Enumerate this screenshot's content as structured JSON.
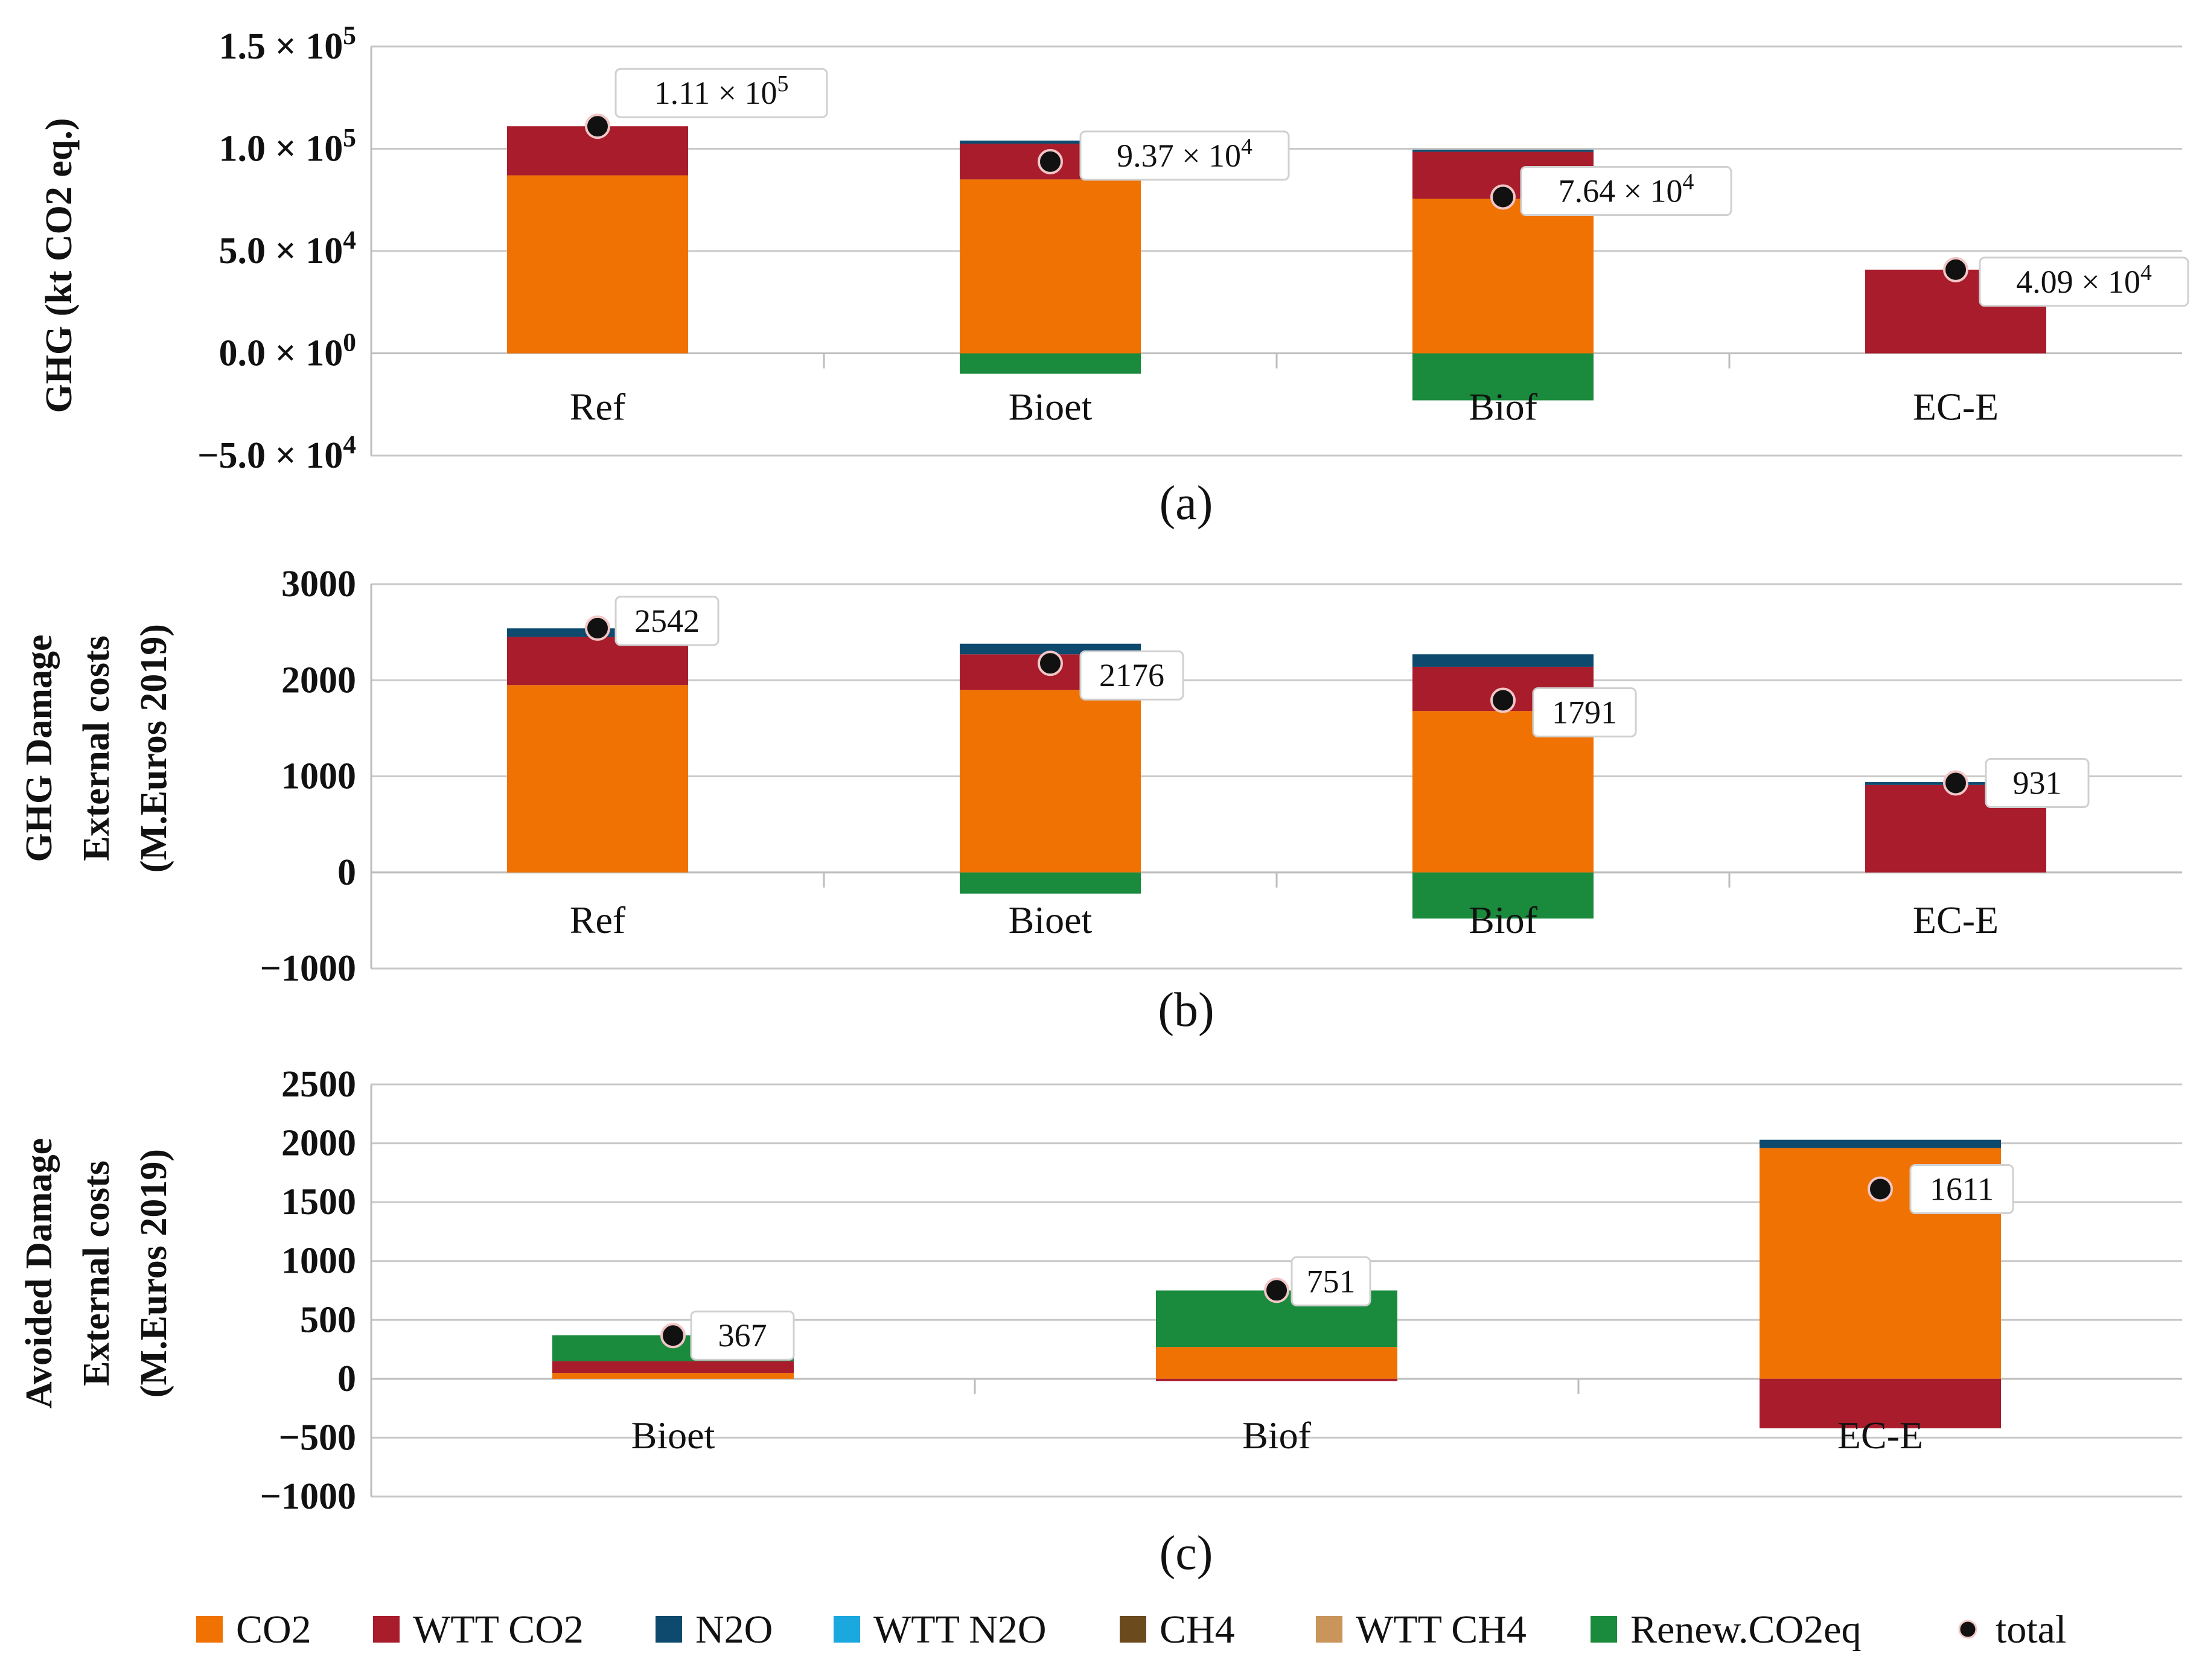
{
  "legend": [
    {
      "key": "CO2",
      "label": "CO2",
      "color": "#ef7202"
    },
    {
      "key": "WTT_CO2",
      "label": "WTT CO2",
      "color": "#a81c2c"
    },
    {
      "key": "N2O",
      "label": "N2O",
      "color": "#0e4a6e"
    },
    {
      "key": "WTT_N2O",
      "label": "WTT N2O",
      "color": "#1aa8df"
    },
    {
      "key": "CH4",
      "label": "CH4",
      "color": "#6b4a1e"
    },
    {
      "key": "WTT_CH4",
      "label": "WTT CH4",
      "color": "#c9955b"
    },
    {
      "key": "Renew_CO2eq",
      "label": "Renew.CO2eq",
      "color": "#1a8a3c"
    },
    {
      "key": "total",
      "label": "total",
      "color": "#111111"
    }
  ],
  "chart_data": [
    {
      "panel": "(a)",
      "type": "bar",
      "stacked": true,
      "ylabel": "GHG (kt CO2 eq.)",
      "ylim": [
        -50000,
        150000
      ],
      "ytick_values": [
        150000,
        100000,
        50000,
        0,
        -50000
      ],
      "ytick_labels": [
        {
          "mant": "1.5",
          "exp": "5"
        },
        {
          "mant": "1.0",
          "exp": "5"
        },
        {
          "mant": "5.0",
          "exp": "4"
        },
        {
          "mant": "0.0",
          "exp": "0"
        },
        {
          "mant": "−5.0",
          "exp": "4"
        }
      ],
      "categories": [
        "Ref",
        "Bioet",
        "Biof",
        "EC-E"
      ],
      "series": [
        {
          "name": "CO2",
          "values": [
            87000,
            85000,
            75500,
            0
          ]
        },
        {
          "name": "WTT CO2",
          "values": [
            24000,
            17500,
            23000,
            40900
          ]
        },
        {
          "name": "N2O",
          "values": [
            0,
            1500,
            1000,
            0
          ]
        },
        {
          "name": "Renew.CO2eq",
          "values": [
            0,
            -10000,
            -23000,
            0
          ]
        }
      ],
      "totals": [
        111000,
        93700,
        76400,
        40900
      ],
      "total_labels": [
        {
          "mant": "1.11",
          "exp": "5"
        },
        {
          "mant": "9.37",
          "exp": "4"
        },
        {
          "mant": "7.64",
          "exp": "4"
        },
        {
          "mant": "4.09",
          "exp": "4"
        }
      ]
    },
    {
      "panel": "(b)",
      "type": "bar",
      "stacked": true,
      "ylabel": [
        "GHG Damage",
        "External costs",
        "(M.Euros 2019)"
      ],
      "ylim": [
        -1000,
        3000
      ],
      "ytick_values": [
        3000,
        2000,
        1000,
        0,
        -1000
      ],
      "ytick_labels": [
        "3000",
        "2000",
        "1000",
        "0",
        "−1000"
      ],
      "categories": [
        "Ref",
        "Bioet",
        "Biof",
        "EC-E"
      ],
      "series": [
        {
          "name": "CO2",
          "values": [
            1950,
            1900,
            1680,
            0
          ]
        },
        {
          "name": "WTT CO2",
          "values": [
            500,
            370,
            460,
            910
          ]
        },
        {
          "name": "N2O",
          "values": [
            90,
            110,
            130,
            30
          ]
        },
        {
          "name": "Renew.CO2eq",
          "values": [
            0,
            -220,
            -480,
            0
          ]
        }
      ],
      "totals": [
        2542,
        2176,
        1791,
        931
      ],
      "total_labels": [
        "2542",
        "2176",
        "1791",
        "931"
      ]
    },
    {
      "panel": "(c)",
      "type": "bar",
      "stacked": true,
      "ylabel": [
        "Avoided Damage",
        "External costs",
        "(M.Euros 2019)"
      ],
      "ylim": [
        -1000,
        2500
      ],
      "ytick_values": [
        2500,
        2000,
        1500,
        1000,
        500,
        0,
        -500,
        -1000
      ],
      "ytick_labels": [
        "2500",
        "2000",
        "1500",
        "1000",
        "500",
        "0",
        "−500",
        "−1000"
      ],
      "categories": [
        "Bioet",
        "Biof",
        "EC-E"
      ],
      "series": [
        {
          "name": "CO2",
          "values": [
            50,
            270,
            1960
          ]
        },
        {
          "name": "WTT CO2",
          "values": [
            100,
            -20,
            -420
          ]
        },
        {
          "name": "N2O",
          "values": [
            0,
            0,
            70
          ]
        },
        {
          "name": "Renew.CO2eq",
          "values": [
            220,
            480,
            0
          ]
        }
      ],
      "totals": [
        367,
        751,
        1611
      ],
      "total_labels": [
        "367",
        "751",
        "1611"
      ]
    }
  ]
}
